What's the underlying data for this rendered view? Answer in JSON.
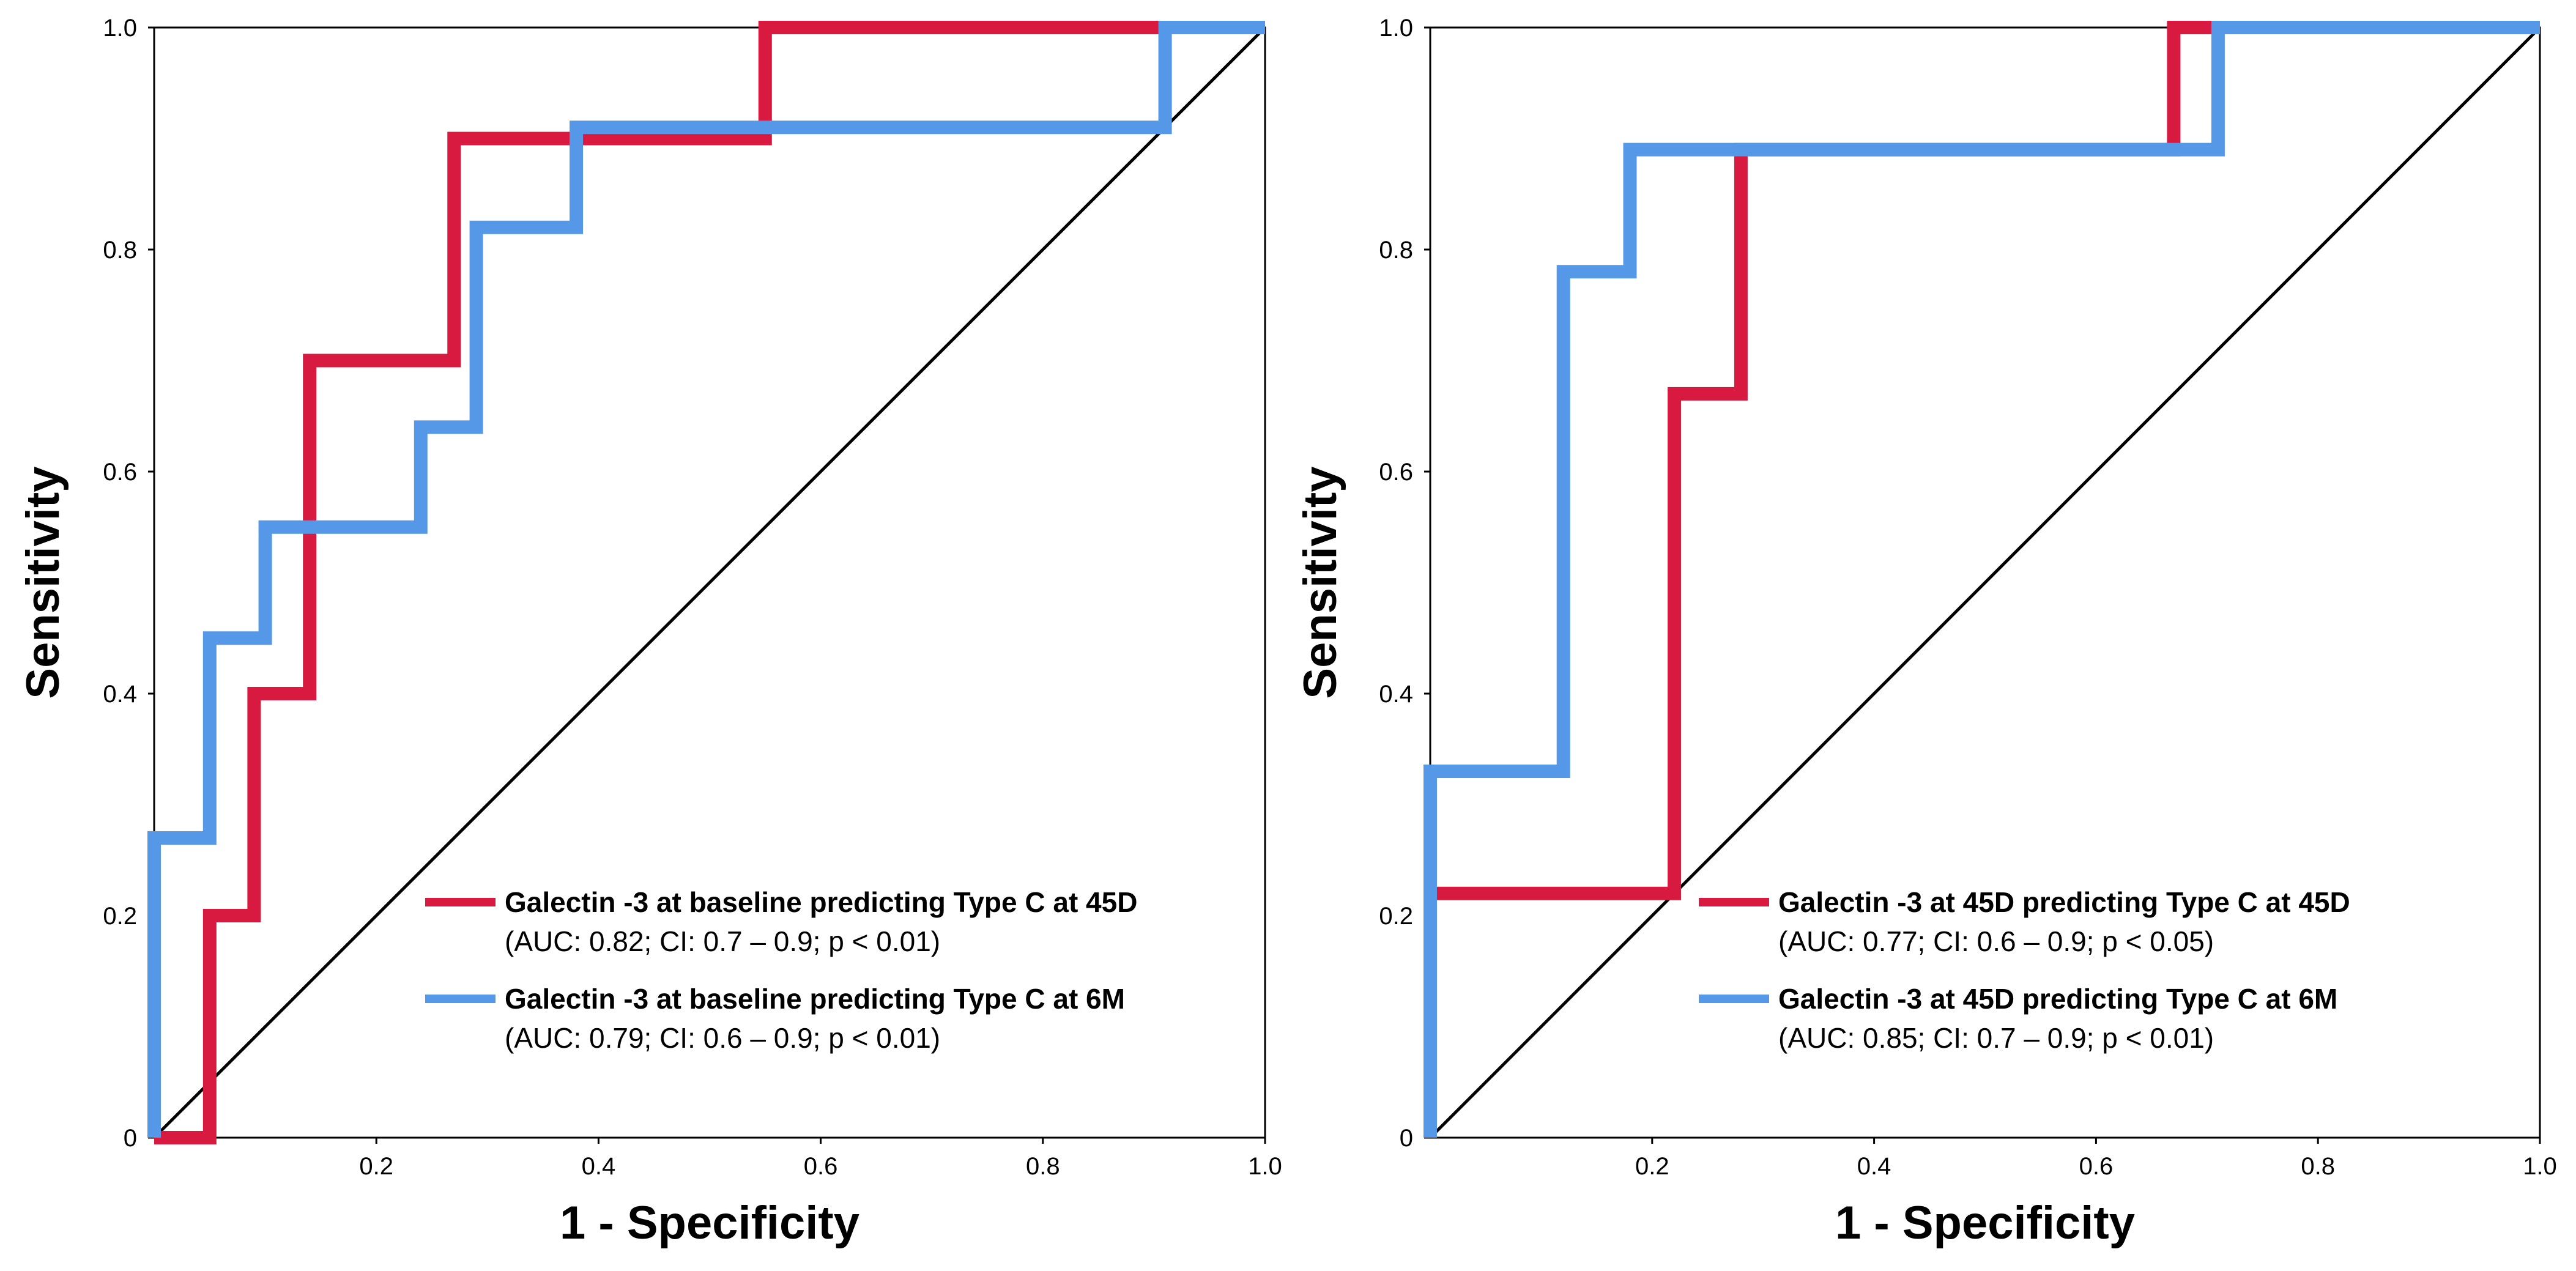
{
  "chart_data": [
    {
      "type": "line",
      "title": "",
      "xlabel": "1 - Specificity",
      "ylabel": "Sensitivity",
      "xlim": [
        0,
        1
      ],
      "ylim": [
        0,
        1
      ],
      "x_ticks": [
        "0.2",
        "0.4",
        "0.6",
        "0.8",
        "1.0"
      ],
      "x_tick_values": [
        0.2,
        0.4,
        0.6,
        0.8,
        1.0
      ],
      "y_ticks": [
        "0",
        "0.2",
        "0.4",
        "0.6",
        "0.8",
        "1.0"
      ],
      "y_tick_values": [
        0,
        0.2,
        0.4,
        0.6,
        0.8,
        1.0
      ],
      "grid": false,
      "legend_position": "bottom-right",
      "reference_line": {
        "x": [
          0,
          1
        ],
        "y": [
          0,
          1
        ],
        "color": "#000000"
      },
      "series": [
        {
          "name": "Galectin -3 at baseline predicting Type C at 45D",
          "detail": "(AUC: 0.82; CI: 0.7 – 0.9; p < 0.01)",
          "color": "#d81940",
          "x": [
            0,
            0.05,
            0.05,
            0.09,
            0.09,
            0.14,
            0.14,
            0.27,
            0.27,
            0.55,
            0.55,
            1.0
          ],
          "y": [
            0,
            0,
            0.2,
            0.2,
            0.4,
            0.4,
            0.7,
            0.7,
            0.9,
            0.9,
            1.0,
            1.0
          ]
        },
        {
          "name": "Galectin -3 at baseline predicting Type C at 6M",
          "detail": "(AUC: 0.79; CI: 0.6 – 0.9; p < 0.01)",
          "color": "#5598e8",
          "x": [
            0,
            0,
            0.05,
            0.05,
            0.1,
            0.1,
            0.24,
            0.24,
            0.29,
            0.29,
            0.38,
            0.38,
            0.91,
            0.91,
            1.0
          ],
          "y": [
            0,
            0.27,
            0.27,
            0.45,
            0.45,
            0.55,
            0.55,
            0.64,
            0.64,
            0.82,
            0.82,
            0.91,
            0.91,
            1.0,
            1.0
          ]
        }
      ]
    },
    {
      "type": "line",
      "title": "",
      "xlabel": "1 - Specificity",
      "ylabel": "Sensitivity",
      "xlim": [
        0,
        1
      ],
      "ylim": [
        0,
        1
      ],
      "x_ticks": [
        "0.2",
        "0.4",
        "0.6",
        "0.8",
        "1.0"
      ],
      "x_tick_values": [
        0.2,
        0.4,
        0.6,
        0.8,
        1.0
      ],
      "y_ticks": [
        "0",
        "0.2",
        "0.4",
        "0.6",
        "0.8",
        "1.0"
      ],
      "y_tick_values": [
        0,
        0.2,
        0.4,
        0.6,
        0.8,
        1.0
      ],
      "grid": false,
      "legend_position": "bottom-right",
      "reference_line": {
        "x": [
          0,
          1
        ],
        "y": [
          0,
          1
        ],
        "color": "#000000"
      },
      "series": [
        {
          "name": "Galectin -3 at 45D predicting Type C at 45D",
          "detail": "(AUC: 0.77; CI: 0.6 – 0.9; p < 0.05)",
          "color": "#d81940",
          "x": [
            0,
            0,
            0.22,
            0.22,
            0.28,
            0.28,
            0.67,
            0.67,
            1.0
          ],
          "y": [
            0,
            0.22,
            0.22,
            0.67,
            0.67,
            0.89,
            0.89,
            1.0,
            1.0
          ]
        },
        {
          "name": "Galectin -3 at 45D predicting Type C at 6M",
          "detail": "(AUC: 0.85; CI: 0.7 – 0.9; p < 0.01)",
          "color": "#5598e8",
          "x": [
            0,
            0,
            0.12,
            0.12,
            0.18,
            0.18,
            0.71,
            0.71,
            1.0
          ],
          "y": [
            0,
            0.33,
            0.33,
            0.78,
            0.78,
            0.89,
            0.89,
            1.0,
            1.0
          ]
        }
      ]
    }
  ]
}
